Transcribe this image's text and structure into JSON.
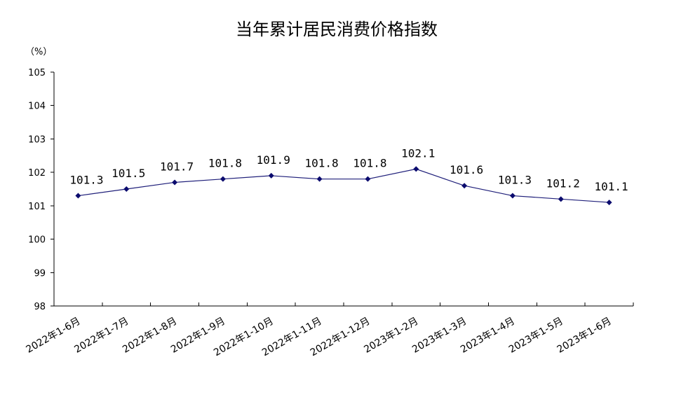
{
  "chart_data": {
    "type": "line",
    "title": "当年累计居民消费价格指数",
    "unit_label": "（%）",
    "xlabel": "",
    "ylabel": "",
    "ylim": [
      98,
      105
    ],
    "yticks": [
      "98",
      "99",
      "100",
      "101",
      "102",
      "103",
      "104",
      "105"
    ],
    "grid": false,
    "categories": [
      "2022年1-6月",
      "2022年1-7月",
      "2022年1-8月",
      "2022年1-9月",
      "2022年1-10月",
      "2022年1-11月",
      "2022年1-12月",
      "2023年1-2月",
      "2023年1-3月",
      "2023年1-4月",
      "2023年1-5月",
      "2023年1-6月"
    ],
    "values": [
      101.3,
      101.5,
      101.7,
      101.8,
      101.9,
      101.8,
      101.8,
      102.1,
      101.6,
      101.3,
      101.2,
      101.1
    ],
    "data_labels": [
      "101.3",
      "101.5",
      "101.7",
      "101.8",
      "101.9",
      "101.8",
      "101.8",
      "102.1",
      "101.6",
      "101.3",
      "101.2",
      "101.1"
    ],
    "colors": {
      "line": "#1f1f7a",
      "marker": "#0b0b6e"
    }
  }
}
